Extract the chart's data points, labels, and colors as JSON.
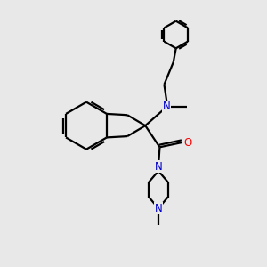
{
  "background_color": "#e8e8e8",
  "bond_color": "#000000",
  "N_color": "#0000cc",
  "O_color": "#ff0000",
  "line_width": 1.6,
  "figsize": [
    3.0,
    3.0
  ],
  "dpi": 100,
  "xlim": [
    0,
    10
  ],
  "ylim": [
    0,
    10
  ]
}
